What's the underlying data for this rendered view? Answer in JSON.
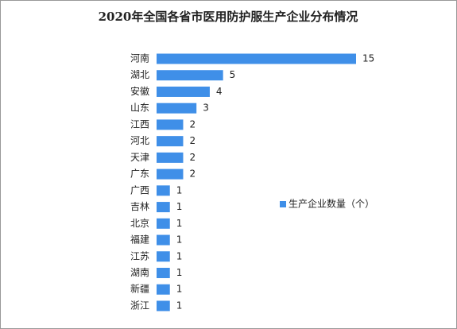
{
  "chart_data": {
    "type": "bar",
    "orientation": "horizontal",
    "title": "2020年全国各省市医用防护服生产企业分布情况",
    "categories": [
      "河南",
      "湖北",
      "安徽",
      "山东",
      "江西",
      "河北",
      "天津",
      "广东",
      "广西",
      "吉林",
      "北京",
      "福建",
      "江苏",
      "湖南",
      "新疆",
      "浙江"
    ],
    "series": [
      {
        "name": "生产企业数量（个）",
        "color": "#3f8fe8",
        "values": [
          15,
          5,
          4,
          3,
          2,
          2,
          2,
          2,
          1,
          1,
          1,
          1,
          1,
          1,
          1,
          1
        ]
      }
    ],
    "legend": "right"
  }
}
